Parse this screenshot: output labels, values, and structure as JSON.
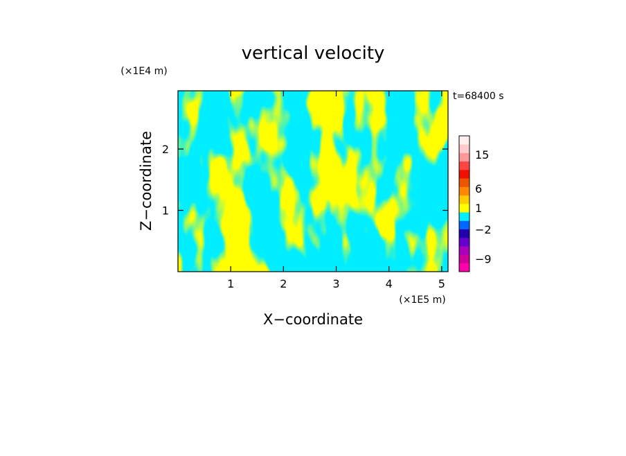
{
  "chart_data": {
    "type": "heatmap",
    "title": "vertical velocity",
    "xlabel": "X−coordinate",
    "ylabel": "Z−coordinate",
    "x_unit": "(×1E5 m)",
    "y_unit": "(×1E4 m)",
    "time_label": "t=68400 s",
    "xlim": [
      0,
      5.12
    ],
    "ylim": [
      0,
      2.95
    ],
    "x_ticks": [
      1,
      2,
      3,
      4,
      5
    ],
    "y_ticks": [
      1,
      2
    ],
    "x_tick_labels": [
      "1",
      "2",
      "3",
      "4",
      "5"
    ],
    "y_tick_labels": [
      "1",
      "2"
    ],
    "colors": {
      "positive_band": "#ffff00",
      "negative_band": "#00eeff"
    },
    "colorbar": {
      "levels": [
        {
          "color": "#ff00aa"
        },
        {
          "color": "#cc0099"
        },
        {
          "color": "#aa00bb"
        },
        {
          "color": "#6600cc"
        },
        {
          "color": "#2200aa"
        },
        {
          "color": "#0066ff"
        },
        {
          "color": "#00eeff"
        },
        {
          "color": "#ffff00"
        },
        {
          "color": "#ffcc00"
        },
        {
          "color": "#ff8800"
        },
        {
          "color": "#ee5500"
        },
        {
          "color": "#ee1100"
        },
        {
          "color": "#ff4444"
        },
        {
          "color": "#ff9999"
        },
        {
          "color": "#ffcccc"
        },
        {
          "color": "#ffeeee"
        }
      ],
      "labels": [
        {
          "text": "−9",
          "at_level": 1.5
        },
        {
          "text": "−2",
          "at_level": 5
        },
        {
          "text": "1",
          "at_level": 7.5
        },
        {
          "text": "6",
          "at_level": 9.8
        },
        {
          "text": "15",
          "at_level": 13.8
        }
      ]
    }
  }
}
